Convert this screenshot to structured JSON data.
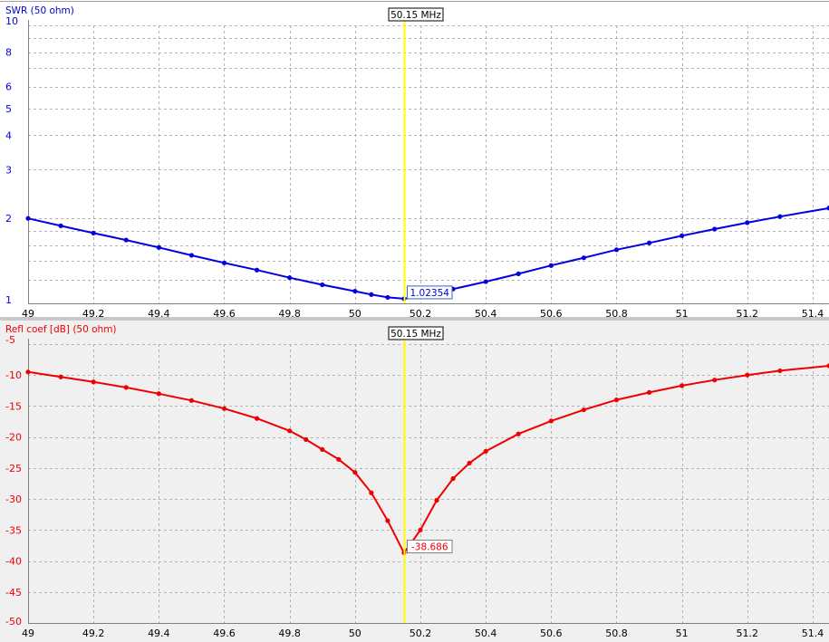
{
  "marker": {
    "label": "50.15 MHz",
    "freq": 50.15,
    "color": "#ffff00"
  },
  "chart_data": [
    {
      "type": "line",
      "title": "SWR (50 ohm)",
      "color": "#0000e0",
      "background": "#ffffff",
      "y_scale": "log",
      "xlim": [
        49.0,
        51.45
      ],
      "ylim": [
        1,
        10
      ],
      "x_ticks": [
        49,
        49.2,
        49.4,
        49.6,
        49.8,
        50,
        50.2,
        50.4,
        50.6,
        50.8,
        51,
        51.2,
        51.4
      ],
      "x_tick_labels": [
        "49",
        "49.2",
        "49.4",
        "49.6",
        "49.8",
        "50",
        "50.2",
        "50.4",
        "50.6",
        "50.8",
        "51",
        "51.2",
        "51.4"
      ],
      "y_ticks": [
        1,
        2,
        3,
        4,
        5,
        6,
        8,
        10
      ],
      "y_tick_labels": [
        "1",
        "2",
        "3",
        "4",
        "5",
        "6",
        "8",
        "10"
      ],
      "y_grid": [
        1,
        1.2,
        1.4,
        1.6,
        1.8,
        2,
        3,
        4,
        5,
        6,
        7,
        8,
        9,
        10
      ],
      "grid": true,
      "x": [
        49.0,
        49.1,
        49.2,
        49.3,
        49.4,
        49.5,
        49.6,
        49.7,
        49.8,
        49.9,
        50.0,
        50.05,
        50.1,
        50.15,
        50.2,
        50.3,
        50.4,
        50.5,
        50.6,
        50.7,
        50.8,
        50.9,
        51.0,
        51.1,
        51.2,
        51.3,
        51.45
      ],
      "y": [
        2.0,
        1.88,
        1.77,
        1.67,
        1.57,
        1.47,
        1.38,
        1.3,
        1.22,
        1.15,
        1.09,
        1.06,
        1.035,
        1.02354,
        1.045,
        1.11,
        1.18,
        1.26,
        1.35,
        1.44,
        1.54,
        1.63,
        1.73,
        1.83,
        1.93,
        2.03,
        2.18
      ],
      "marker_value": "1.02354"
    },
    {
      "type": "line",
      "title": "Refl coef [dB] (50 ohm)",
      "color": "#ee0000",
      "background": "#f0f0f0",
      "xlim": [
        49.0,
        51.45
      ],
      "ylim": [
        -50,
        -5
      ],
      "x_ticks": [
        49,
        49.2,
        49.4,
        49.6,
        49.8,
        50,
        50.2,
        50.4,
        50.6,
        50.8,
        51,
        51.2,
        51.4
      ],
      "x_tick_labels": [
        "49",
        "49.2",
        "49.4",
        "49.6",
        "49.8",
        "50",
        "50.2",
        "50.4",
        "50.6",
        "50.8",
        "51",
        "51.2",
        "51.4"
      ],
      "y_ticks": [
        -5,
        -10,
        -15,
        -20,
        -25,
        -30,
        -35,
        -40,
        -45,
        -50
      ],
      "y_tick_labels": [
        "-5",
        "-10",
        "-15",
        "-20",
        "-25",
        "-30",
        "-35",
        "-40",
        "-45",
        "-50"
      ],
      "grid": true,
      "x": [
        49.0,
        49.1,
        49.2,
        49.3,
        49.4,
        49.5,
        49.6,
        49.7,
        49.8,
        49.85,
        49.9,
        49.95,
        50.0,
        50.05,
        50.1,
        50.15,
        50.2,
        50.25,
        50.3,
        50.35,
        50.4,
        50.5,
        50.6,
        50.7,
        50.8,
        50.9,
        51.0,
        51.1,
        51.2,
        51.3,
        51.45
      ],
      "y": [
        -9.5,
        -10.3,
        -11.1,
        -12.0,
        -13.0,
        -14.1,
        -15.4,
        -17.0,
        -19.0,
        -20.4,
        -22.0,
        -23.6,
        -25.7,
        -29.0,
        -33.5,
        -38.686,
        -35.0,
        -30.2,
        -26.7,
        -24.2,
        -22.3,
        -19.5,
        -17.4,
        -15.6,
        -14.0,
        -12.8,
        -11.7,
        -10.8,
        -10.0,
        -9.3,
        -8.5
      ],
      "marker_value": "-38.686"
    }
  ]
}
